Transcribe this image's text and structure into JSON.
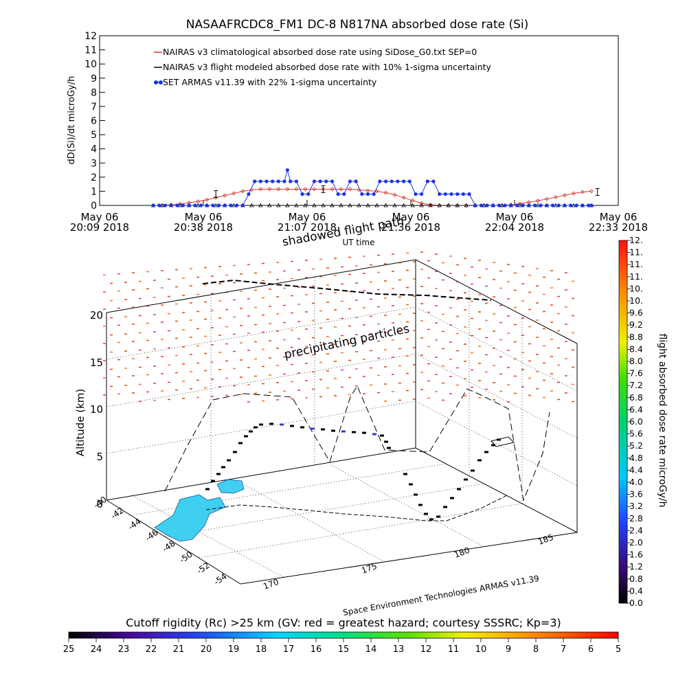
{
  "title": "NASAAFRCDC8_FM1 DC-8    N817NA absorbed dose rate (Si)",
  "chart_data": [
    {
      "type": "line",
      "ylabel": "dD(Si)/dt microGy/h",
      "xlabel": "UT time",
      "ylim": [
        0,
        12
      ],
      "y_ticks": [
        "0",
        "1",
        "2",
        "3",
        "4",
        "5",
        "6",
        "7",
        "8",
        "9",
        "10",
        "11",
        "12"
      ],
      "x_ticks": [
        {
          "l1": "May 06",
          "l2": "20:09 2018"
        },
        {
          "l1": "May 06",
          "l2": "20:38 2018"
        },
        {
          "l1": "May 06",
          "l2": "21:07 2018"
        },
        {
          "l1": "May 06",
          "l2": "21:36 2018"
        },
        {
          "l1": "May 06",
          "l2": "22:04 2018"
        },
        {
          "l1": "May 06",
          "l2": "22:33 2018"
        }
      ],
      "x_minutes": [
        0,
        174
      ],
      "legend_placement": "top-left",
      "series": [
        {
          "name": "NAIRAS v3 climatological absorbed dose rate using SiDose_G0.txt SEP=0",
          "color": "#d23a2a",
          "marker": "diamond",
          "x": [
            18,
            21,
            24,
            27,
            30,
            33,
            36,
            39,
            42,
            45,
            48,
            51,
            54,
            57,
            60,
            63,
            66,
            69,
            72,
            75,
            78,
            81,
            84,
            87,
            90,
            93,
            96,
            99,
            102,
            105,
            108,
            111,
            114,
            117,
            120,
            123,
            126,
            129,
            132,
            135,
            138,
            141,
            144,
            147,
            150,
            153,
            156,
            159,
            162,
            165
          ],
          "y": [
            0,
            0,
            0.05,
            0.1,
            0.18,
            0.28,
            0.4,
            0.55,
            0.7,
            0.85,
            1.0,
            1.1,
            1.15,
            1.15,
            1.15,
            1.15,
            1.15,
            1.15,
            1.15,
            1.15,
            1.15,
            1.15,
            1.15,
            1.1,
            1.05,
            1.0,
            0.9,
            0.75,
            0.55,
            0.35,
            0.15,
            0.05,
            0,
            0,
            0,
            0,
            0,
            0,
            0,
            0,
            0.05,
            0.12,
            0.22,
            0.33,
            0.45,
            0.58,
            0.72,
            0.85,
            0.95,
            1.0
          ]
        },
        {
          "name": "NAIRAS v3 flight modeled absorbed dose rate with 10% 1-sigma uncertainty",
          "color": "#000000",
          "marker": "triangle",
          "x": [
            18,
            21,
            24,
            27,
            30,
            33,
            36,
            39,
            42,
            45,
            48,
            51,
            54,
            57,
            60,
            63,
            66,
            69,
            72,
            75,
            78,
            81,
            84,
            87,
            90,
            93,
            96,
            99,
            102,
            105,
            108,
            111,
            114,
            117,
            120,
            123,
            126,
            129,
            132,
            135,
            138,
            141,
            144,
            147,
            150,
            153,
            156,
            159,
            162,
            165
          ],
          "y": [
            0,
            0,
            0,
            0,
            0,
            0,
            0,
            0,
            0,
            0,
            0,
            0,
            0,
            0,
            0,
            0,
            0,
            0,
            0,
            0,
            0,
            0,
            0,
            0,
            0,
            0,
            0,
            0,
            0,
            0,
            0,
            0,
            0,
            0,
            0,
            0,
            0,
            0,
            0,
            0,
            0,
            0,
            0,
            0,
            0,
            0,
            0,
            0,
            0,
            0
          ]
        },
        {
          "name": "SET ARMAS v11.39 with 22% 1-sigma uncertainty",
          "color": "#1a35e6",
          "marker": "dot",
          "x": [
            18,
            20,
            22,
            24,
            26,
            28,
            30,
            32,
            34,
            36,
            38,
            40,
            42,
            44,
            46,
            48,
            50,
            52,
            54,
            56,
            58,
            60,
            62,
            63,
            64,
            66,
            68,
            70,
            72,
            74,
            76,
            78,
            80,
            82,
            84,
            86,
            88,
            90,
            92,
            94,
            96,
            98,
            100,
            102,
            104,
            106,
            108,
            110,
            112,
            114,
            116,
            118,
            120,
            122,
            124,
            126,
            128,
            130,
            132,
            134,
            136,
            138,
            140,
            142,
            144,
            146,
            148,
            150,
            152,
            154,
            156,
            158,
            160,
            162,
            164,
            165
          ],
          "y": [
            0,
            0,
            0,
            0,
            0,
            0,
            0,
            0,
            0,
            0,
            0,
            0,
            0,
            0,
            0,
            0,
            0.8,
            1.7,
            1.7,
            1.7,
            1.7,
            1.7,
            1.7,
            2.5,
            1.7,
            1.7,
            0.8,
            0.8,
            1.7,
            1.7,
            1.7,
            1.7,
            0.8,
            0.8,
            1.7,
            1.7,
            0.8,
            0.8,
            0.8,
            1.7,
            1.7,
            1.7,
            1.7,
            1.7,
            1.7,
            0.8,
            0.8,
            1.7,
            1.7,
            0.8,
            0.8,
            0.8,
            0.8,
            0.8,
            0.8,
            0,
            0,
            0,
            0,
            0,
            0,
            0,
            0,
            0,
            0,
            0,
            0,
            0,
            0,
            0,
            0,
            0,
            0,
            0,
            0,
            0
          ]
        }
      ]
    },
    {
      "type": "scatter",
      "zlabel": "Altitude (km)",
      "z_ticks": [
        "0",
        "5",
        "10",
        "15",
        "20"
      ],
      "lat_ticks": [
        "-40",
        "-42",
        "-44",
        "-46",
        "-48",
        "-50",
        "-52",
        "-54"
      ],
      "lon_ticks": [
        "170",
        "175",
        "180",
        "185"
      ],
      "annotations": [
        "shadowed flight path",
        "precipitating particles"
      ],
      "credit": "Space Environment Technologies ARMAS v11.39"
    },
    {
      "type": "heatmap",
      "title": "flight absorbed dose rate microGy/h",
      "orientation": "vertical",
      "ticks": [
        "0.0",
        "0.4",
        "0.8",
        "1.2",
        "1.6",
        "2.0",
        "2.4",
        "2.8",
        "3.2",
        "3.6",
        "4.0",
        "4.4",
        "4.8",
        "5.2",
        "5.6",
        "6.0",
        "6.4",
        "6.8",
        "7.2",
        "7.6",
        "8.0",
        "8.4",
        "8.8",
        "9.2",
        "9.6",
        "10.",
        "10.",
        "11.",
        "11.",
        "11.",
        "12."
      ]
    },
    {
      "type": "heatmap",
      "title": "Cutoff rigidity (Rc) >25 km (GV: red = greatest hazard; courtesy SSSRC; Kp=3)",
      "orientation": "horizontal",
      "ticks": [
        "25",
        "24",
        "23",
        "22",
        "21",
        "20",
        "19",
        "18",
        "17",
        "16",
        "15",
        "14",
        "13",
        "12",
        "11",
        "10",
        "9",
        "8",
        "7",
        "6",
        "5"
      ]
    }
  ]
}
